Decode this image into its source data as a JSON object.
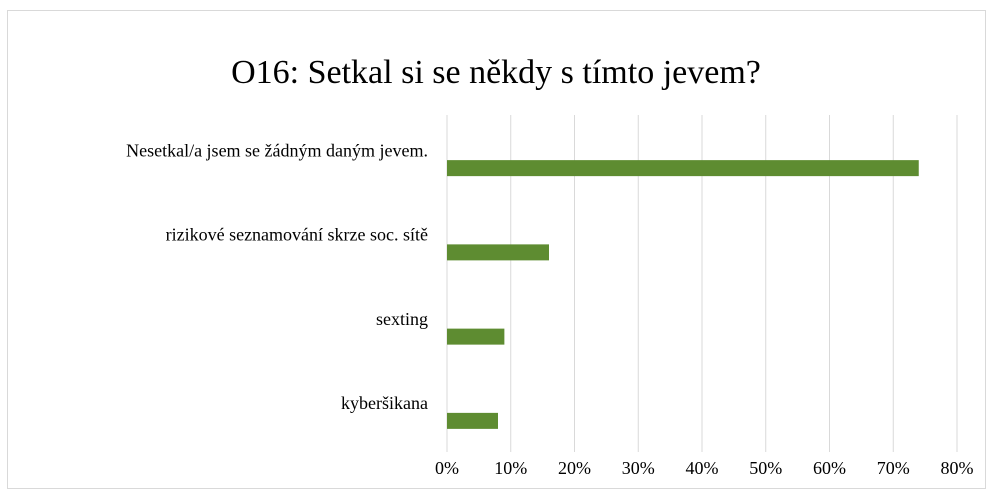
{
  "chart_data": {
    "type": "bar",
    "orientation": "horizontal",
    "title": "O16: Setkal si se někdy s tímto jevem?",
    "categories": [
      "Nesetkal/a jsem se žádným daným jevem.",
      "rizikové seznamování skrze soc. sítě",
      "sexting",
      "kyberšikana"
    ],
    "values": [
      74,
      16,
      9,
      8
    ],
    "color": "#5e8c31",
    "xlim": [
      0,
      80
    ],
    "xticks": [
      {
        "value": 0,
        "label": "0%"
      },
      {
        "value": 10,
        "label": "10%"
      },
      {
        "value": 20,
        "label": "20%"
      },
      {
        "value": 30,
        "label": "30%"
      },
      {
        "value": 40,
        "label": "40%"
      },
      {
        "value": 50,
        "label": "50%"
      },
      {
        "value": 60,
        "label": "60%"
      },
      {
        "value": 70,
        "label": "70%"
      },
      {
        "value": 80,
        "label": "80%"
      }
    ],
    "grid": true
  }
}
